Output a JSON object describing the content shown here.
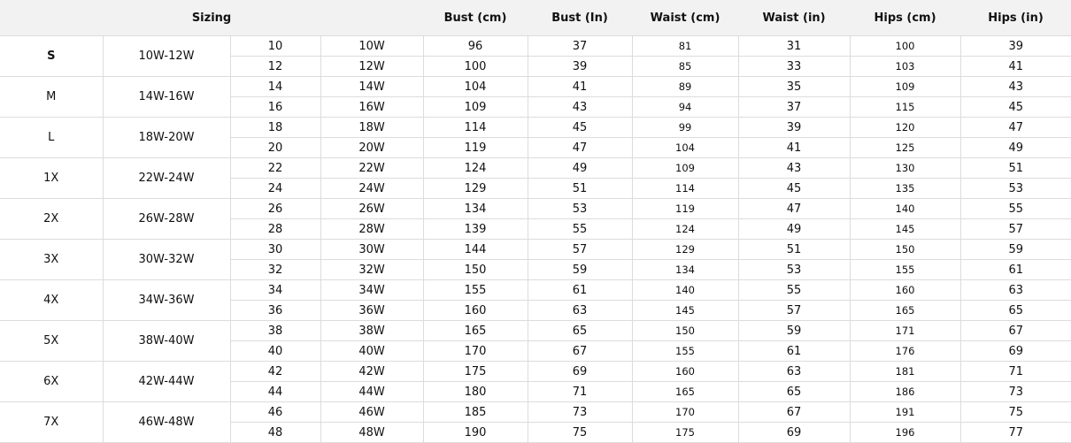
{
  "header": {
    "sizing": "Sizing",
    "columns": [
      "Bust (cm)",
      "Bust (In)",
      "Waist (cm)",
      "Waist (in)",
      "Hips (cm)",
      "Hips (in)"
    ]
  },
  "groups": [
    {
      "size": "S",
      "range": "10W-12W",
      "rows": [
        [
          "10",
          "10W",
          "96",
          "37",
          "81",
          "31",
          "100",
          "39"
        ],
        [
          "12",
          "12W",
          "100",
          "39",
          "85",
          "33",
          "103",
          "41"
        ]
      ]
    },
    {
      "size": "M",
      "range": "14W-16W",
      "rows": [
        [
          "14",
          "14W",
          "104",
          "41",
          "89",
          "35",
          "109",
          "43"
        ],
        [
          "16",
          "16W",
          "109",
          "43",
          "94",
          "37",
          "115",
          "45"
        ]
      ]
    },
    {
      "size": "L",
      "range": "18W-20W",
      "rows": [
        [
          "18",
          "18W",
          "114",
          "45",
          "99",
          "39",
          "120",
          "47"
        ],
        [
          "20",
          "20W",
          "119",
          "47",
          "104",
          "41",
          "125",
          "49"
        ]
      ]
    },
    {
      "size": "1X",
      "range": "22W-24W",
      "rows": [
        [
          "22",
          "22W",
          "124",
          "49",
          "109",
          "43",
          "130",
          "51"
        ],
        [
          "24",
          "24W",
          "129",
          "51",
          "114",
          "45",
          "135",
          "53"
        ]
      ]
    },
    {
      "size": "2X",
      "range": "26W-28W",
      "rows": [
        [
          "26",
          "26W",
          "134",
          "53",
          "119",
          "47",
          "140",
          "55"
        ],
        [
          "28",
          "28W",
          "139",
          "55",
          "124",
          "49",
          "145",
          "57"
        ]
      ]
    },
    {
      "size": "3X",
      "range": "30W-32W",
      "rows": [
        [
          "30",
          "30W",
          "144",
          "57",
          "129",
          "51",
          "150",
          "59"
        ],
        [
          "32",
          "32W",
          "150",
          "59",
          "134",
          "53",
          "155",
          "61"
        ]
      ]
    },
    {
      "size": "4X",
      "range": "34W-36W",
      "rows": [
        [
          "34",
          "34W",
          "155",
          "61",
          "140",
          "55",
          "160",
          "63"
        ],
        [
          "36",
          "36W",
          "160",
          "63",
          "145",
          "57",
          "165",
          "65"
        ]
      ]
    },
    {
      "size": "5X",
      "range": "38W-40W",
      "rows": [
        [
          "38",
          "38W",
          "165",
          "65",
          "150",
          "59",
          "171",
          "67"
        ],
        [
          "40",
          "40W",
          "170",
          "67",
          "155",
          "61",
          "176",
          "69"
        ]
      ]
    },
    {
      "size": "6X",
      "range": "42W-44W",
      "rows": [
        [
          "42",
          "42W",
          "175",
          "69",
          "160",
          "63",
          "181",
          "71"
        ],
        [
          "44",
          "44W",
          "180",
          "71",
          "165",
          "65",
          "186",
          "73"
        ]
      ]
    },
    {
      "size": "7X",
      "range": "46W-48W",
      "rows": [
        [
          "46",
          "46W",
          "185",
          "73",
          "170",
          "67",
          "191",
          "75"
        ],
        [
          "48",
          "48W",
          "190",
          "75",
          "175",
          "69",
          "196",
          "77"
        ]
      ]
    }
  ]
}
